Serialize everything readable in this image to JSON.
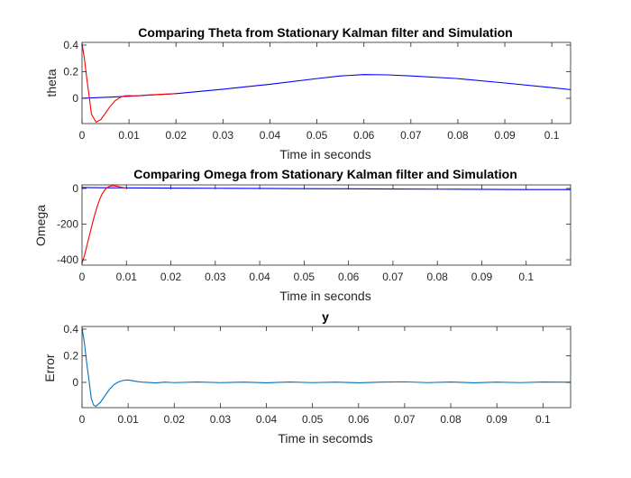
{
  "figure": {
    "background": "#ffffff"
  },
  "chart_data": [
    {
      "type": "line",
      "title": "Comparing Theta from Stationary Kalman filter and Simulation",
      "xlabel": "Time in seconds",
      "ylabel": "theta",
      "xlim": [
        0,
        0.104
      ],
      "ylim": [
        -0.19,
        0.42
      ],
      "xticks": [
        0,
        0.01,
        0.02,
        0.03,
        0.04,
        0.05,
        0.06,
        0.07,
        0.08,
        0.09,
        0.1
      ],
      "xtick_labels": [
        "0",
        "0.01",
        "0.02",
        "0.03",
        "0.04",
        "0.05",
        "0.06",
        "0.07",
        "0.08",
        "0.09",
        "0.1"
      ],
      "yticks": [
        0,
        0.2,
        0.4
      ],
      "ytick_labels": [
        "0",
        "0.2",
        "0.4"
      ],
      "series": [
        {
          "color": "#0000ff",
          "x": [
            0,
            0.01,
            0.02,
            0.03,
            0.04,
            0.05,
            0.055,
            0.06,
            0.065,
            0.07,
            0.08,
            0.09,
            0.1,
            0.104
          ],
          "y": [
            0,
            0.015,
            0.035,
            0.068,
            0.105,
            0.148,
            0.168,
            0.178,
            0.176,
            0.168,
            0.148,
            0.115,
            0.08,
            0.065
          ]
        },
        {
          "color": "#ff0000",
          "x": [
            0,
            0.0005,
            0.001,
            0.0015,
            0.002,
            0.003,
            0.004,
            0.005,
            0.006,
            0.007,
            0.008,
            0.009,
            0.01,
            0.011,
            0.012,
            0.014,
            0.017,
            0.02
          ],
          "y": [
            0.41,
            0.3,
            0.15,
            0.02,
            -0.12,
            -0.18,
            -0.16,
            -0.11,
            -0.06,
            -0.02,
            0.005,
            0.018,
            0.02,
            0.018,
            0.02,
            0.025,
            0.03,
            0.035
          ]
        }
      ]
    },
    {
      "type": "line",
      "title": "Comparing Omega from Stationary Kalman filter and Simulation",
      "xlabel": "Time in seconds",
      "ylabel": "Omega",
      "xlim": [
        0,
        0.11
      ],
      "ylim": [
        -430,
        20
      ],
      "xticks": [
        0,
        0.01,
        0.02,
        0.03,
        0.04,
        0.05,
        0.06,
        0.07,
        0.08,
        0.09,
        0.1
      ],
      "xtick_labels": [
        "0",
        "0.01",
        "0.02",
        "0.03",
        "0.04",
        "0.05",
        "0.06",
        "0.07",
        "0.08",
        "0.09",
        "0.1"
      ],
      "yticks": [
        -400,
        -200,
        0
      ],
      "ytick_labels": [
        "-400",
        "-200",
        "0"
      ],
      "series": [
        {
          "color": "#0000ff",
          "x": [
            0,
            0.01,
            0.02,
            0.03,
            0.04,
            0.05,
            0.06,
            0.07,
            0.08,
            0.09,
            0.1,
            0.11
          ],
          "y": [
            5,
            3,
            2,
            1,
            0,
            -1,
            -2,
            -3,
            -4,
            -5,
            -6,
            -6
          ]
        },
        {
          "color": "#ff0000",
          "x": [
            0,
            0.0005,
            0.001,
            0.0015,
            0.002,
            0.0025,
            0.003,
            0.0035,
            0.004,
            0.0045,
            0.005,
            0.0055,
            0.006,
            0.0065,
            0.007,
            0.0075,
            0.008,
            0.0085,
            0.009,
            0.0095,
            0.01
          ],
          "y": [
            -420,
            -380,
            -330,
            -280,
            -230,
            -180,
            -135,
            -95,
            -60,
            -32,
            -12,
            2,
            10,
            14,
            15,
            14,
            12,
            9,
            6,
            4,
            3
          ]
        }
      ]
    },
    {
      "type": "line",
      "title": "y",
      "xlabel": "Time in secomds",
      "ylabel": "Error",
      "xlim": [
        0,
        0.106
      ],
      "ylim": [
        -0.19,
        0.42
      ],
      "xticks": [
        0,
        0.01,
        0.02,
        0.03,
        0.04,
        0.05,
        0.06,
        0.07,
        0.08,
        0.09,
        0.1
      ],
      "xtick_labels": [
        "0",
        "0.01",
        "0.02",
        "0.03",
        "0.04",
        "0.05",
        "0.06",
        "0.07",
        "0.08",
        "0.09",
        "0.1"
      ],
      "yticks": [
        0,
        0.2,
        0.4
      ],
      "ytick_labels": [
        "0",
        "0.2",
        "0.4"
      ],
      "series": [
        {
          "color": "#0072bd",
          "x": [
            0,
            0.0005,
            0.001,
            0.0015,
            0.002,
            0.0025,
            0.003,
            0.004,
            0.005,
            0.006,
            0.007,
            0.008,
            0.009,
            0.01,
            0.011,
            0.012,
            0.013,
            0.014,
            0.016,
            0.018,
            0.02,
            0.025,
            0.03,
            0.035,
            0.04,
            0.045,
            0.05,
            0.055,
            0.06,
            0.065,
            0.07,
            0.075,
            0.08,
            0.085,
            0.09,
            0.095,
            0.1,
            0.106
          ],
          "y": [
            0.41,
            0.3,
            0.15,
            0.02,
            -0.12,
            -0.17,
            -0.18,
            -0.15,
            -0.1,
            -0.05,
            -0.015,
            0.005,
            0.015,
            0.018,
            0.012,
            0.006,
            0.002,
            0.0,
            -0.004,
            0.002,
            -0.002,
            0.003,
            -0.002,
            0.002,
            -0.003,
            0.003,
            -0.002,
            0.002,
            -0.003,
            0.002,
            0.004,
            -0.002,
            0.003,
            -0.003,
            0.002,
            -0.002,
            0.003,
            0.001
          ]
        }
      ]
    }
  ]
}
